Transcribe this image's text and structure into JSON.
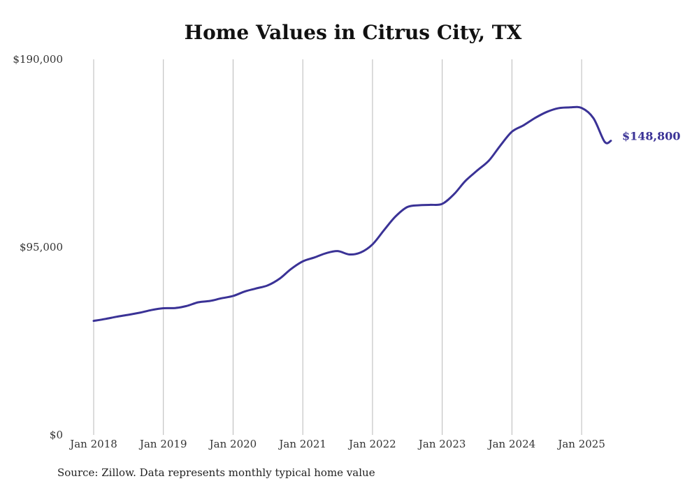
{
  "chart_data": {
    "type": "line",
    "title": "Home Values in Citrus City, TX",
    "y_ticks": [
      {
        "value": 190000,
        "label": "$190,000"
      },
      {
        "value": 95000,
        "label": "$95,000"
      },
      {
        "value": 0,
        "label": "$0"
      }
    ],
    "x_ticks": [
      {
        "value": 2018.0,
        "label": "Jan 2018"
      },
      {
        "value": 2019.0,
        "label": "Jan 2019"
      },
      {
        "value": 2020.0,
        "label": "Jan 2020"
      },
      {
        "value": 2021.0,
        "label": "Jan 2021"
      },
      {
        "value": 2022.0,
        "label": "Jan 2022"
      },
      {
        "value": 2023.0,
        "label": "Jan 2023"
      },
      {
        "value": 2024.0,
        "label": "Jan 2024"
      },
      {
        "value": 2025.0,
        "label": "Jan 2025"
      }
    ],
    "ylim": [
      0,
      190000
    ],
    "xlim": [
      2018.0,
      2025.42
    ],
    "grid": "vertical",
    "line_color": "#3a3296",
    "end_label": "$148,800",
    "series": [
      {
        "points": [
          [
            2018.0,
            57700
          ],
          [
            2018.17,
            58700
          ],
          [
            2018.33,
            59800
          ],
          [
            2018.5,
            60800
          ],
          [
            2018.67,
            61900
          ],
          [
            2018.83,
            63200
          ],
          [
            2019.0,
            64100
          ],
          [
            2019.17,
            64200
          ],
          [
            2019.33,
            65200
          ],
          [
            2019.5,
            67100
          ],
          [
            2019.67,
            67800
          ],
          [
            2019.83,
            69100
          ],
          [
            2020.0,
            70300
          ],
          [
            2020.17,
            72600
          ],
          [
            2020.33,
            74100
          ],
          [
            2020.5,
            75700
          ],
          [
            2020.67,
            79100
          ],
          [
            2020.83,
            83900
          ],
          [
            2021.0,
            87800
          ],
          [
            2021.17,
            89800
          ],
          [
            2021.33,
            91900
          ],
          [
            2021.5,
            93000
          ],
          [
            2021.67,
            91300
          ],
          [
            2021.83,
            92300
          ],
          [
            2022.0,
            96400
          ],
          [
            2022.17,
            103800
          ],
          [
            2022.33,
            110500
          ],
          [
            2022.5,
            115300
          ],
          [
            2022.67,
            116200
          ],
          [
            2022.83,
            116400
          ],
          [
            2023.0,
            116900
          ],
          [
            2023.17,
            121800
          ],
          [
            2023.33,
            128400
          ],
          [
            2023.5,
            133700
          ],
          [
            2023.67,
            138800
          ],
          [
            2023.83,
            146200
          ],
          [
            2024.0,
            153400
          ],
          [
            2024.17,
            156700
          ],
          [
            2024.33,
            160300
          ],
          [
            2024.5,
            163400
          ],
          [
            2024.67,
            165300
          ],
          [
            2024.83,
            165700
          ],
          [
            2025.0,
            165400
          ],
          [
            2025.17,
            160200
          ],
          [
            2025.33,
            148300
          ],
          [
            2025.42,
            148800
          ]
        ]
      }
    ]
  },
  "footer": {
    "source": "Source: Zillow. Data represents monthly typical home value"
  }
}
